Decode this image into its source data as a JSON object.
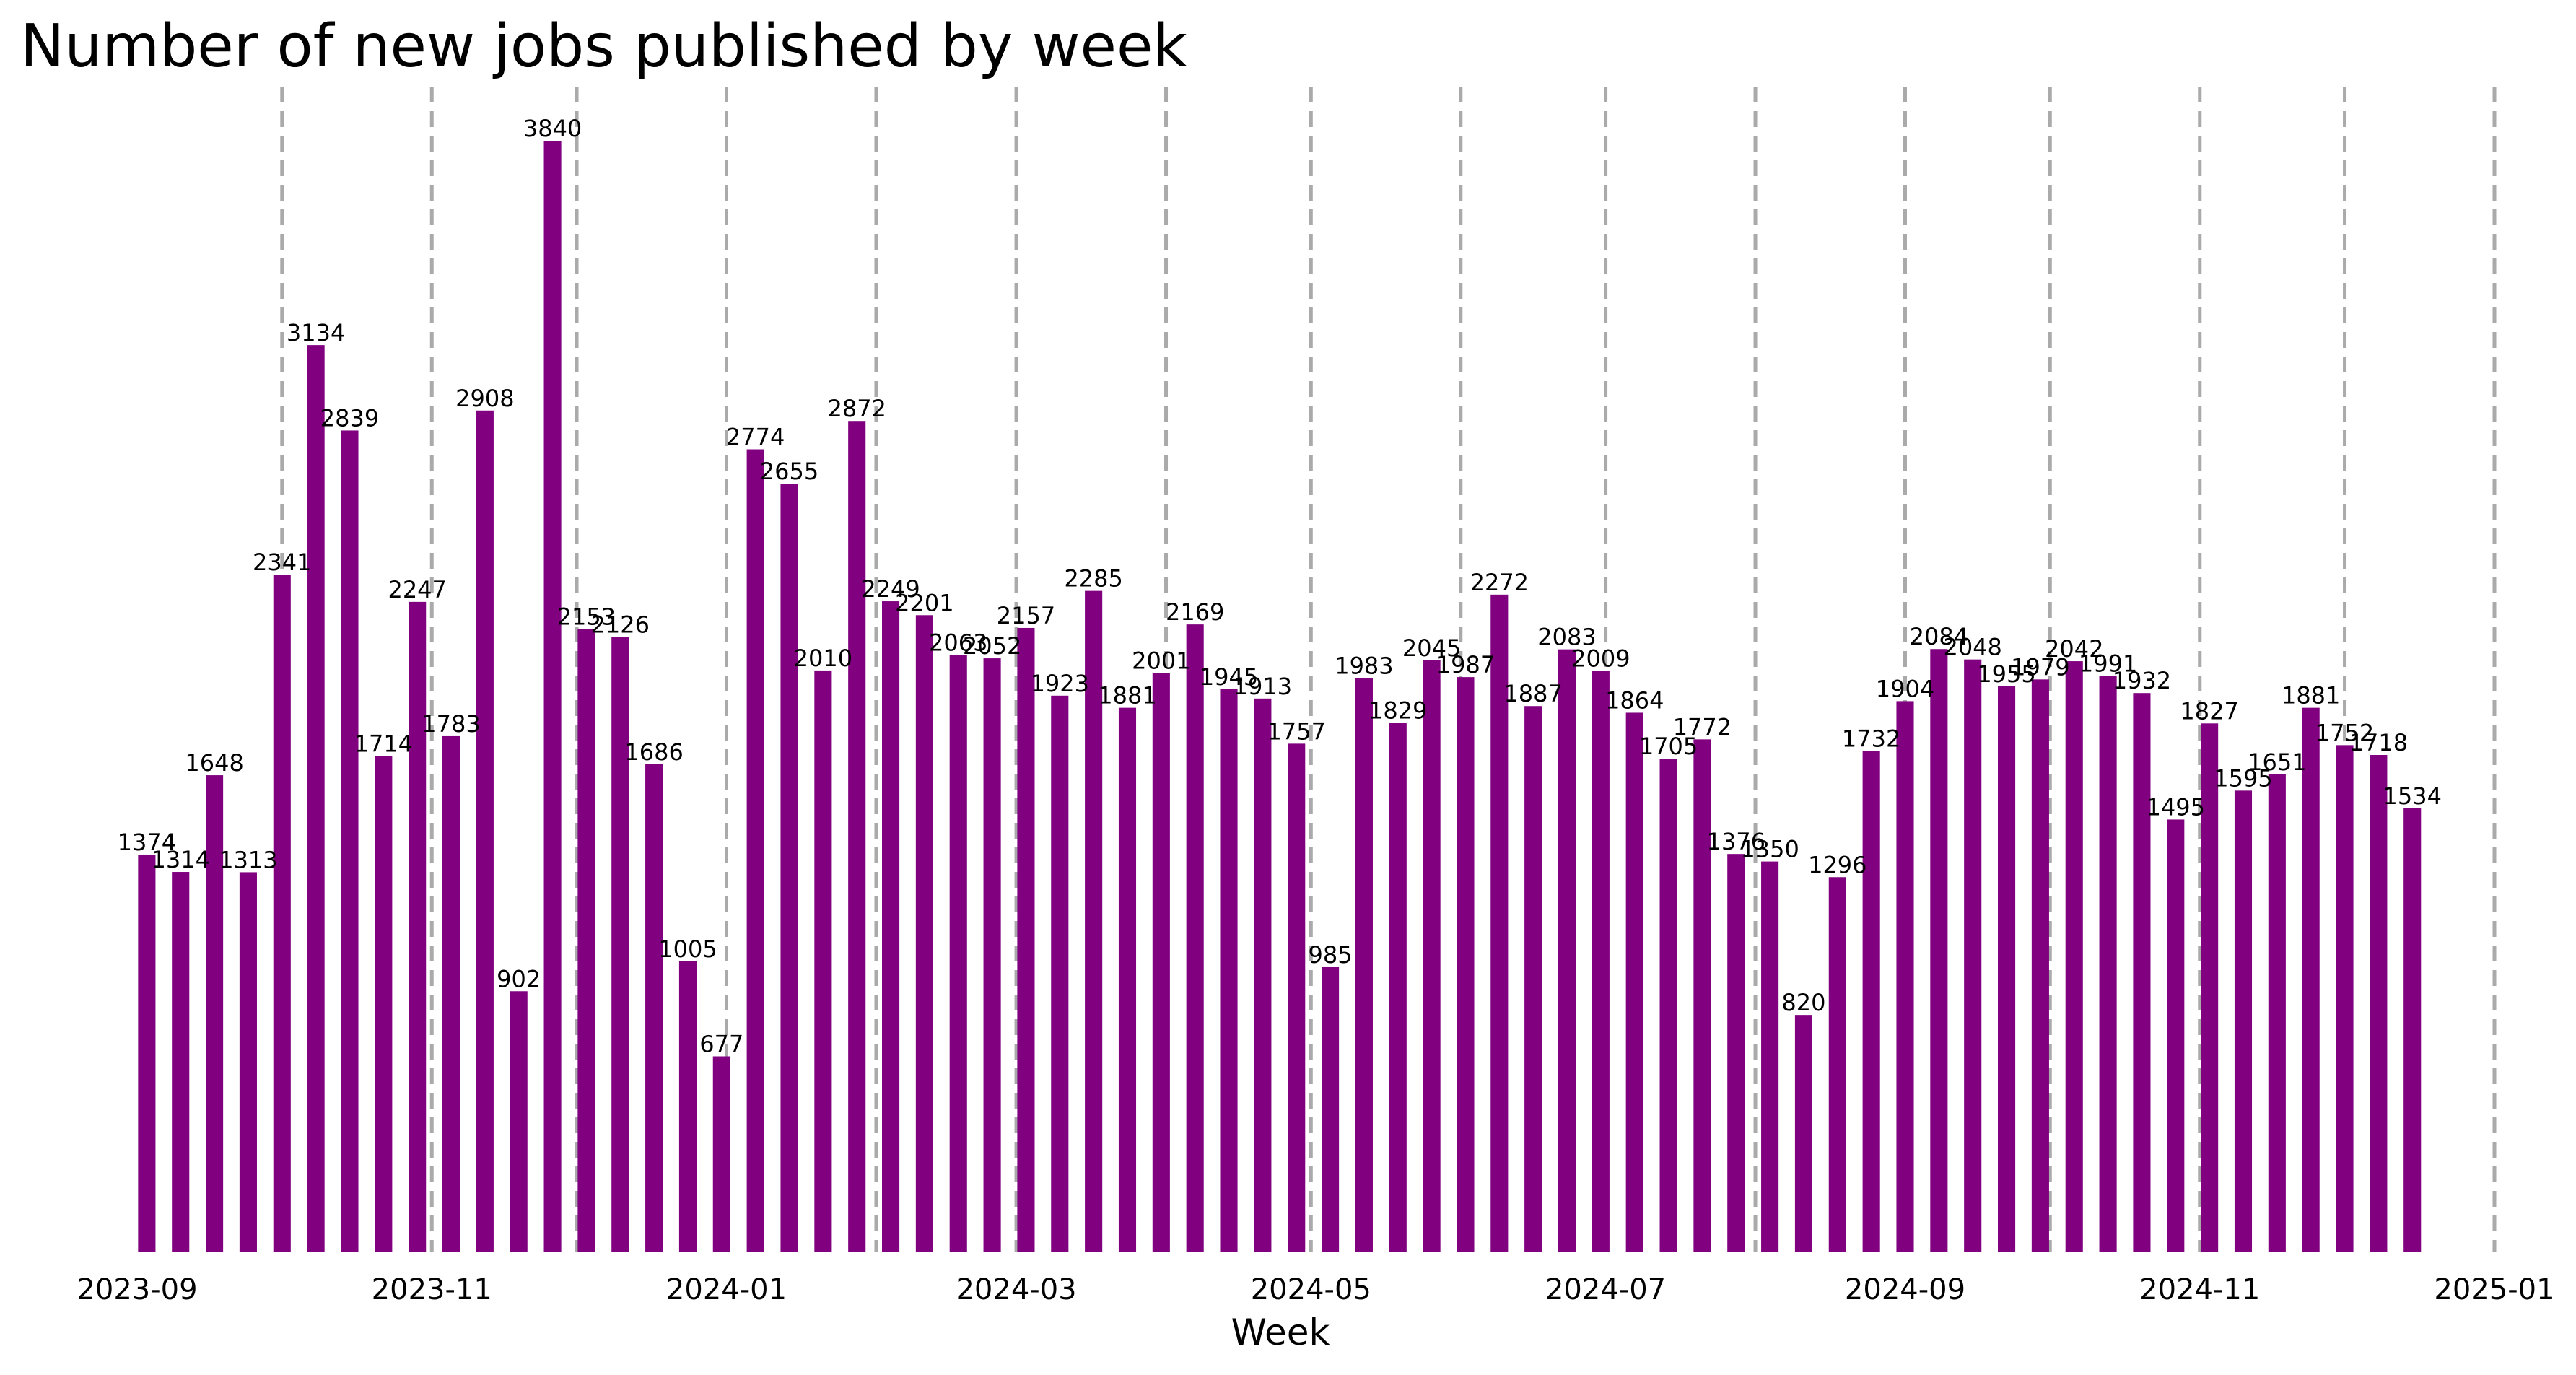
{
  "chart_data": {
    "type": "bar",
    "title": "Number of new jobs published by week",
    "xlabel": "Week",
    "ylabel": "",
    "x_axis_type": "date",
    "xlim": [
      "2023-09-01",
      "2025-01-01"
    ],
    "ylim": [
      0,
      3840
    ],
    "grid": "vertical dashed gray lines at month starts",
    "bar_color": "#800080",
    "tick_labels": [
      "2023-09",
      "2023-11",
      "2024-01",
      "2024-03",
      "2024-05",
      "2024-07",
      "2024-09",
      "2024-11",
      "2025-01"
    ],
    "month_lines": [
      "2023-10-01",
      "2023-11-01",
      "2023-12-01",
      "2024-01-01",
      "2024-02-01",
      "2024-03-01",
      "2024-04-01",
      "2024-05-01",
      "2024-06-01",
      "2024-07-01",
      "2024-08-01",
      "2024-09-01",
      "2024-10-01",
      "2024-11-01",
      "2024-12-01",
      "2025-01-01"
    ],
    "categories": [
      "2023-09-03",
      "2023-09-10",
      "2023-09-17",
      "2023-09-24",
      "2023-10-01",
      "2023-10-08",
      "2023-10-15",
      "2023-10-22",
      "2023-10-29",
      "2023-11-05",
      "2023-11-12",
      "2023-11-19",
      "2023-11-26",
      "2023-12-03",
      "2023-12-10",
      "2023-12-17",
      "2023-12-24",
      "2023-12-31",
      "2024-01-07",
      "2024-01-14",
      "2024-01-21",
      "2024-01-28",
      "2024-02-04",
      "2024-02-11",
      "2024-02-18",
      "2024-02-25",
      "2024-03-03",
      "2024-03-10",
      "2024-03-17",
      "2024-03-24",
      "2024-03-31",
      "2024-04-07",
      "2024-04-14",
      "2024-04-21",
      "2024-04-28",
      "2024-05-05",
      "2024-05-12",
      "2024-05-19",
      "2024-05-26",
      "2024-06-02",
      "2024-06-09",
      "2024-06-16",
      "2024-06-23",
      "2024-06-30",
      "2024-07-07",
      "2024-07-14",
      "2024-07-21",
      "2024-07-28",
      "2024-08-04",
      "2024-08-11",
      "2024-08-18",
      "2024-08-25",
      "2024-09-01",
      "2024-09-08",
      "2024-09-15",
      "2024-09-22",
      "2024-09-29",
      "2024-10-06",
      "2024-10-13",
      "2024-10-20",
      "2024-10-27",
      "2024-11-03",
      "2024-11-10",
      "2024-11-17",
      "2024-11-24",
      "2024-12-01",
      "2024-12-08",
      "2024-12-15"
    ],
    "values": [
      1374,
      1314,
      1648,
      1313,
      2341,
      3134,
      2839,
      1714,
      2247,
      1783,
      2908,
      902,
      3840,
      2153,
      2126,
      1686,
      1005,
      677,
      2774,
      2655,
      2010,
      2872,
      2249,
      2201,
      2063,
      2052,
      2157,
      1923,
      2285,
      1881,
      2001,
      2169,
      1945,
      1913,
      1757,
      985,
      1983,
      1829,
      2045,
      1987,
      2272,
      1887,
      2083,
      2009,
      1864,
      1705,
      1772,
      1376,
      1350,
      820,
      1296,
      1732,
      1904,
      2084,
      2048,
      1955,
      1979,
      2042,
      1991,
      1932,
      1495,
      1827,
      1595,
      1651,
      1881,
      1752,
      1718,
      1534
    ]
  }
}
